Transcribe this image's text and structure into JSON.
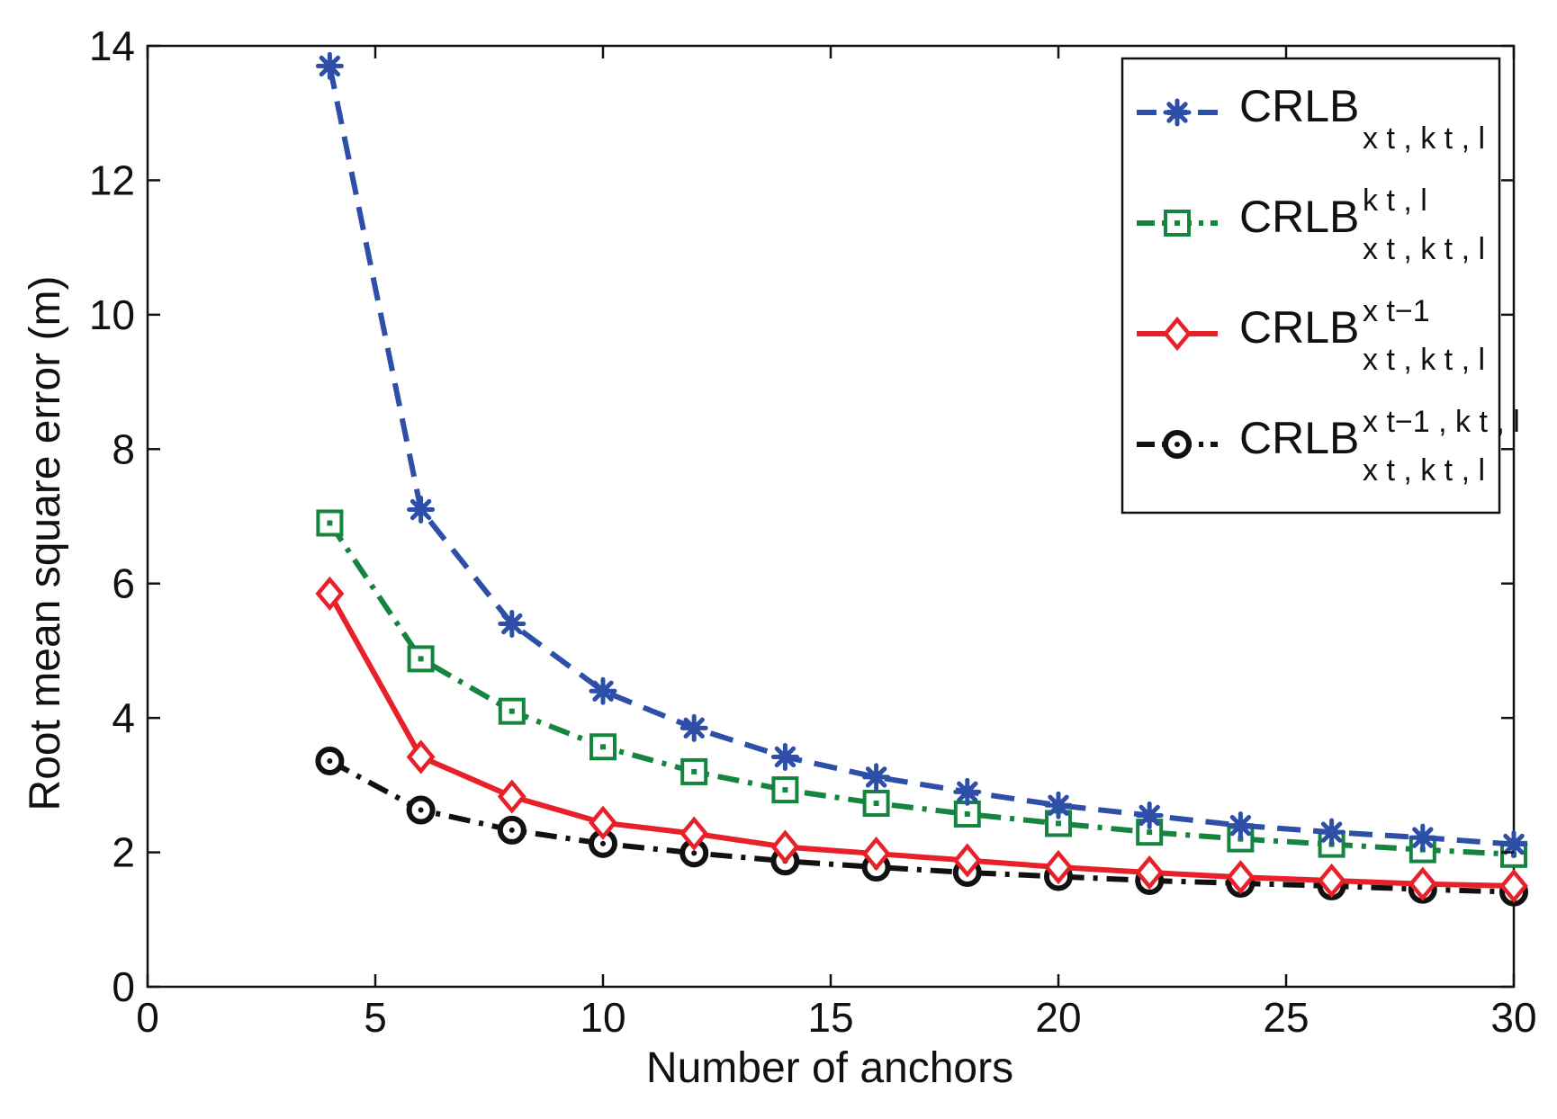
{
  "chart_data": {
    "type": "line",
    "title": "",
    "xlabel": "Number of anchors",
    "ylabel": "Root mean square error (m)",
    "xlim": [
      0,
      30
    ],
    "ylim": [
      0,
      14
    ],
    "xticks": [
      0,
      5,
      10,
      15,
      20,
      25,
      30
    ],
    "yticks": [
      0,
      2,
      4,
      6,
      8,
      10,
      12,
      14
    ],
    "grid": false,
    "legend_position": "top-right",
    "x": [
      4,
      6,
      8,
      10,
      12,
      14,
      16,
      18,
      20,
      22,
      24,
      26,
      28,
      30
    ],
    "series": [
      {
        "name": "CRLB x_t, k_t, l",
        "legend": {
          "base": "CRLB",
          "sup": "",
          "sub": "x t , k t , l"
        },
        "color": "#2e4fa8",
        "marker": "asterisk",
        "line": "dashed",
        "values": [
          13.7,
          7.1,
          5.4,
          4.4,
          3.85,
          3.42,
          3.12,
          2.9,
          2.7,
          2.55,
          2.4,
          2.3,
          2.22,
          2.12
        ]
      },
      {
        "name": "CRLB^{k_t, l}_{x_t, k_t, l}",
        "legend": {
          "base": "CRLB",
          "sup": "k t , l",
          "sub": "x t , k t , l"
        },
        "color": "#15843e",
        "marker": "square",
        "line": "dashdot",
        "values": [
          6.9,
          4.88,
          4.1,
          3.57,
          3.2,
          2.93,
          2.73,
          2.57,
          2.43,
          2.3,
          2.2,
          2.12,
          2.04,
          1.97
        ]
      },
      {
        "name": "CRLB^{x_{t-1}}_{x_t, k_t, l}",
        "legend": {
          "base": "CRLB",
          "sup": "x t−1",
          "sub": "x t , k t , l"
        },
        "color": "#e8202a",
        "marker": "diamond",
        "line": "solid",
        "values": [
          5.85,
          3.42,
          2.83,
          2.44,
          2.28,
          2.08,
          1.98,
          1.88,
          1.78,
          1.7,
          1.63,
          1.58,
          1.53,
          1.5
        ]
      },
      {
        "name": "CRLB^{x_{t-1}, k_t, l}_{x_t, k_t, l}",
        "legend": {
          "base": "CRLB",
          "sup": "x t−1 , k t , l",
          "sub": "x t , k t , l"
        },
        "color": "#111111",
        "marker": "circle",
        "line": "dashdot",
        "values": [
          3.36,
          2.63,
          2.33,
          2.13,
          1.99,
          1.87,
          1.78,
          1.7,
          1.64,
          1.58,
          1.54,
          1.5,
          1.45,
          1.41
        ]
      }
    ]
  }
}
